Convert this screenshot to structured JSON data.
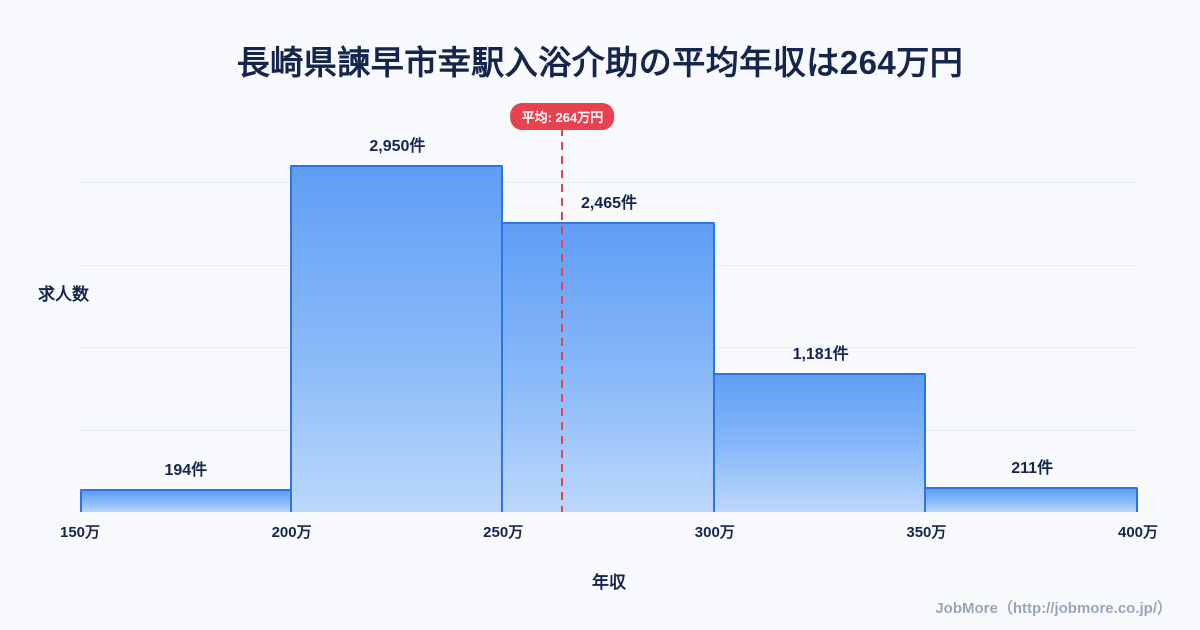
{
  "title": "長崎県諫早市幸駅入浴介助の平均年収は264万円",
  "footer": "JobMore（http://jobmore.co.jp/）",
  "chart_data": {
    "type": "bar",
    "title": "長崎県諫早市幸駅入浴介助の平均年収は264万円",
    "xlabel": "年収",
    "ylabel": "求人数",
    "x_ticks": [
      "150万",
      "200万",
      "250万",
      "300万",
      "350万",
      "400万"
    ],
    "x_range_man_yen": [
      150,
      400
    ],
    "ylim": [
      0,
      3500
    ],
    "grid": true,
    "legend": false,
    "bins": [
      {
        "range": "150万-200万",
        "count": 194,
        "label": "194件"
      },
      {
        "range": "200万-250万",
        "count": 2950,
        "label": "2,950件"
      },
      {
        "range": "250万-300万",
        "count": 2465,
        "label": "2,465件"
      },
      {
        "range": "300万-350万",
        "count": 1181,
        "label": "1,181件"
      },
      {
        "range": "350万-400万",
        "count": 211,
        "label": "211件"
      }
    ],
    "average_line": {
      "value_man_yen": 264,
      "label": "平均: 264万円",
      "style": "dashed"
    },
    "colors": {
      "background": "#f7f9fd",
      "bar_top": "#5f9ef6",
      "bar_bottom": "#bcd8fb",
      "bar_border": "#2e74e6",
      "average_line": "#e8414f",
      "badge_bg": "#e8414f",
      "badge_text": "#ffffff",
      "text": "#15254c",
      "footer_text": "#9aa6b7"
    }
  }
}
